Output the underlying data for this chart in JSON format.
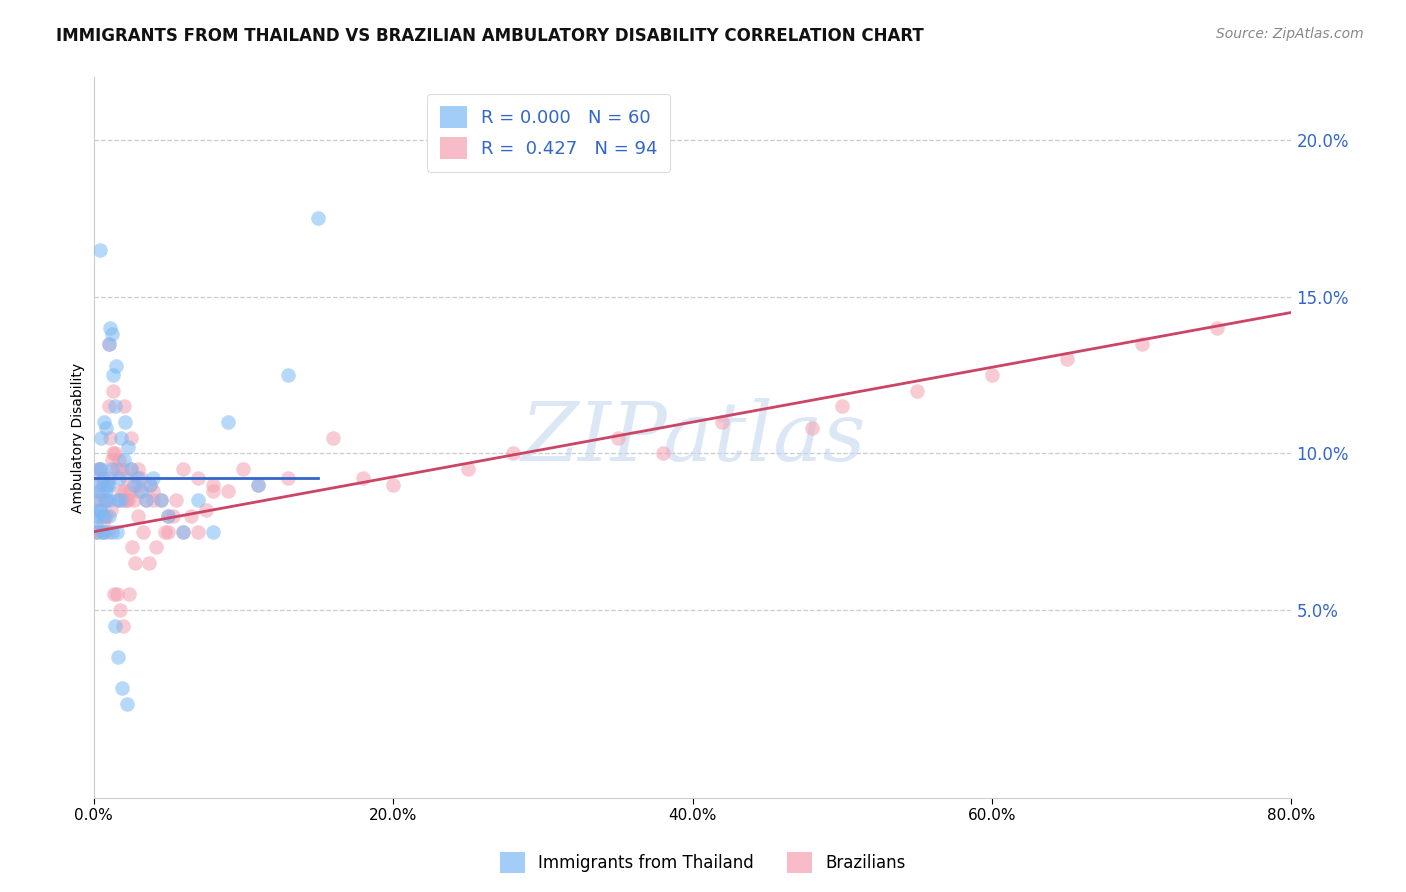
{
  "title": "IMMIGRANTS FROM THAILAND VS BRAZILIAN AMBULATORY DISABILITY CORRELATION CHART",
  "source": "Source: ZipAtlas.com",
  "ylabel": "Ambulatory Disability",
  "xlim": [
    0.0,
    80.0
  ],
  "ylim": [
    -1.0,
    22.0
  ],
  "yticks": [
    5.0,
    10.0,
    15.0,
    20.0
  ],
  "xticks": [
    0.0,
    20.0,
    40.0,
    60.0,
    80.0
  ],
  "legend_R_blue": "0.000",
  "legend_N_blue": "60",
  "legend_R_pink": "0.427",
  "legend_N_pink": "94",
  "legend_label_blue": "Immigrants from Thailand",
  "legend_label_pink": "Brazilians",
  "blue_color": "#7ab8f5",
  "pink_color": "#f4a0b0",
  "trendline_blue_color": "#3366cc",
  "trendline_pink_color": "#cc4466",
  "watermark": "ZIPatlas",
  "title_fontsize": 12,
  "axis_label_fontsize": 10,
  "tick_fontsize": 11,
  "blue_scatter_x": [
    0.1,
    0.2,
    0.3,
    0.3,
    0.4,
    0.5,
    0.5,
    0.6,
    0.7,
    0.8,
    0.9,
    1.0,
    1.0,
    1.1,
    1.2,
    1.3,
    1.4,
    1.5,
    1.6,
    1.7,
    1.8,
    2.0,
    2.1,
    2.3,
    2.5,
    2.7,
    3.0,
    3.2,
    3.5,
    3.8,
    0.15,
    0.25,
    0.35,
    0.45,
    0.65,
    0.85,
    1.05,
    1.25,
    1.55,
    1.85,
    4.0,
    4.5,
    5.0,
    6.0,
    7.0,
    8.0,
    9.0,
    11.0,
    13.0,
    15.0,
    0.4,
    0.6,
    0.7,
    0.8,
    1.0,
    1.2,
    1.4,
    1.6,
    1.9,
    2.2
  ],
  "blue_scatter_y": [
    8.5,
    9.0,
    8.8,
    7.5,
    8.2,
    9.5,
    10.5,
    9.2,
    11.0,
    10.8,
    9.0,
    13.5,
    8.5,
    14.0,
    13.8,
    12.5,
    11.5,
    12.8,
    8.5,
    9.2,
    10.5,
    9.8,
    11.0,
    10.2,
    9.5,
    9.0,
    9.2,
    8.8,
    8.5,
    9.0,
    7.8,
    8.0,
    9.5,
    8.2,
    7.5,
    8.8,
    8.0,
    9.5,
    7.5,
    8.5,
    9.2,
    8.5,
    8.0,
    7.5,
    8.5,
    7.5,
    11.0,
    9.0,
    12.5,
    17.5,
    16.5,
    8.0,
    7.5,
    8.5,
    9.0,
    7.5,
    4.5,
    3.5,
    2.5,
    2.0
  ],
  "pink_scatter_x": [
    0.1,
    0.2,
    0.3,
    0.4,
    0.5,
    0.6,
    0.7,
    0.8,
    0.9,
    1.0,
    1.0,
    1.1,
    1.2,
    1.3,
    1.4,
    1.5,
    1.6,
    1.7,
    1.8,
    1.9,
    2.0,
    2.1,
    2.2,
    2.3,
    2.4,
    2.5,
    2.7,
    2.9,
    3.0,
    3.2,
    3.5,
    3.8,
    4.0,
    4.5,
    5.0,
    5.5,
    6.0,
    6.5,
    7.0,
    7.5,
    8.0,
    0.15,
    0.35,
    0.55,
    0.75,
    0.95,
    1.15,
    1.35,
    1.55,
    1.75,
    1.95,
    2.15,
    2.35,
    2.55,
    2.75,
    3.0,
    3.3,
    3.7,
    4.2,
    4.8,
    5.3,
    0.4,
    0.6,
    0.8,
    1.0,
    1.3,
    1.6,
    2.0,
    2.5,
    3.0,
    4.0,
    5.0,
    6.0,
    7.0,
    8.0,
    10.0,
    13.0,
    16.0,
    20.0,
    28.0,
    35.0,
    42.0,
    50.0,
    55.0,
    60.0,
    65.0,
    70.0,
    75.0,
    9.0,
    11.0,
    18.0,
    25.0,
    38.0,
    48.0
  ],
  "pink_scatter_y": [
    7.5,
    8.2,
    9.5,
    8.8,
    9.2,
    7.8,
    8.5,
    8.0,
    9.0,
    13.5,
    11.5,
    10.5,
    9.8,
    12.0,
    10.0,
    9.5,
    8.5,
    9.8,
    8.8,
    9.5,
    8.8,
    8.5,
    9.2,
    8.5,
    8.8,
    9.5,
    8.5,
    9.0,
    8.8,
    9.2,
    8.5,
    9.0,
    8.8,
    8.5,
    7.5,
    8.5,
    7.5,
    8.0,
    7.5,
    8.2,
    8.8,
    7.5,
    8.5,
    7.5,
    8.0,
    7.5,
    8.2,
    5.5,
    5.5,
    5.0,
    4.5,
    8.5,
    5.5,
    7.0,
    6.5,
    8.0,
    7.5,
    6.5,
    7.0,
    7.5,
    8.0,
    9.5,
    9.0,
    8.5,
    9.2,
    10.0,
    9.5,
    11.5,
    10.5,
    9.5,
    8.5,
    8.0,
    9.5,
    9.2,
    9.0,
    9.5,
    9.2,
    10.5,
    9.0,
    10.0,
    10.5,
    11.0,
    11.5,
    12.0,
    12.5,
    13.0,
    13.5,
    14.0,
    8.8,
    9.0,
    9.2,
    9.5,
    10.0,
    10.8
  ]
}
